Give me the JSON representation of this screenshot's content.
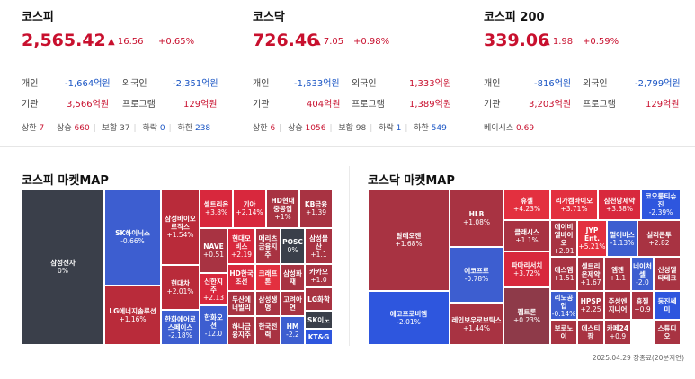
{
  "indices": [
    {
      "name": "코스피",
      "price": "2,565.42",
      "change": "▲ 16.56",
      "pct": "+0.65%",
      "rows": [
        {
          "l1": "개인",
          "v1": "-1,664억원",
          "l2": "외국인",
          "v2": "-2,351억원"
        },
        {
          "l1": "기관",
          "v1": "3,566억원",
          "l2": "프로그램",
          "v2": "129억원"
        }
      ],
      "breadth": {
        "up_limit_label": "상한",
        "up_limit": "7",
        "up_label": "상승",
        "up": "660",
        "flat_label": "보합",
        "flat": "37",
        "down_label": "하락",
        "down": "0",
        "down_limit_label": "하한",
        "down_limit": "238"
      }
    },
    {
      "name": "코스닥",
      "price": "726.46",
      "change": "▲ 7.05",
      "pct": "+0.98%",
      "rows": [
        {
          "l1": "개인",
          "v1": "-1,633억원",
          "l2": "외국인",
          "v2": "1,333억원"
        },
        {
          "l1": "기관",
          "v1": "404억원",
          "l2": "프로그램",
          "v2": "1,389억원"
        }
      ],
      "breadth": {
        "up_limit_label": "상한",
        "up_limit": "6",
        "up_label": "상승",
        "up": "1056",
        "flat_label": "보합",
        "flat": "98",
        "down_label": "하락",
        "down": "1",
        "down_limit_label": "하한",
        "down_limit": "549"
      }
    },
    {
      "name": "코스피 200",
      "price": "339.06",
      "change": "▲ 1.98",
      "pct": "+0.59%",
      "rows": [
        {
          "l1": "개인",
          "v1": "-816억원",
          "l2": "외국인",
          "v2": "-2,799억원"
        },
        {
          "l1": "기관",
          "v1": "3,203억원",
          "l2": "프로그램",
          "v2": "129억원"
        }
      ],
      "basis_label": "베이시스",
      "basis": "0.69"
    }
  ],
  "kospi_map": {
    "title": "코스피 마켓MAP",
    "tiles": [
      {
        "name": "삼성전자",
        "chg": "0%",
        "c": "g"
      },
      {
        "name": "SK하이닉스",
        "chg": "-0.66%",
        "c": "b1"
      },
      {
        "name": "LG에너지솔루션",
        "chg": "+1.16%",
        "c": "r1"
      },
      {
        "name": "삼성바이오로직스",
        "chg": "+1.54%",
        "c": "r1"
      },
      {
        "name": "현대차",
        "chg": "+2.01%",
        "c": "r1"
      },
      {
        "name": "한화에어로스페이스",
        "chg": "-2.18%",
        "c": "b1"
      },
      {
        "name": "셀트리온",
        "chg": "+3.8%",
        "c": "r2"
      },
      {
        "name": "기아",
        "chg": "+2.14%",
        "c": "r2"
      },
      {
        "name": "HD현대중공업",
        "chg": "+1%",
        "c": "r3"
      },
      {
        "name": "KB금융",
        "chg": "+1.39",
        "c": "r3"
      },
      {
        "name": "NAVE",
        "chg": "+0.51",
        "c": "r3"
      },
      {
        "name": "현대모비스",
        "chg": "+2.19",
        "c": "r2"
      },
      {
        "name": "메리츠금융지주",
        "chg": "",
        "c": "r3"
      },
      {
        "name": "POSC",
        "chg": "0%",
        "c": "g"
      },
      {
        "name": "삼성물산",
        "chg": "+1.1",
        "c": "r3"
      },
      {
        "name": "신한지주",
        "chg": "+2.13",
        "c": "r2"
      },
      {
        "name": "HD한국조선",
        "chg": "",
        "c": "r2"
      },
      {
        "name": "크래프톤",
        "chg": "",
        "c": "r4"
      },
      {
        "name": "삼성화재",
        "chg": "",
        "c": "r3"
      },
      {
        "name": "카카오",
        "chg": "+1.0",
        "c": "r3"
      },
      {
        "name": "두산에너빌리",
        "chg": "",
        "c": "r3"
      },
      {
        "name": "삼성생명",
        "chg": "",
        "c": "r3"
      },
      {
        "name": "고려아연",
        "chg": "",
        "c": "r3"
      },
      {
        "name": "LG화학",
        "chg": "",
        "c": "r3"
      },
      {
        "name": "한화오션",
        "chg": "-12.0",
        "c": "b1"
      },
      {
        "name": "하나금융지주",
        "chg": "",
        "c": "r3"
      },
      {
        "name": "한국전력",
        "chg": "",
        "c": "r3"
      },
      {
        "name": "HM",
        "chg": "-2.2",
        "c": "b1"
      },
      {
        "name": "SK이노",
        "chg": "",
        "c": "g"
      },
      {
        "name": "KT&G",
        "chg": "",
        "c": "b2"
      }
    ]
  },
  "kosdaq_map": {
    "title": "코스닥 마켓MAP",
    "tiles": [
      {
        "name": "알테오젠",
        "chg": "+1.68%",
        "c": "r3"
      },
      {
        "name": "에코프로비엠",
        "chg": "-2.01%",
        "c": "b2"
      },
      {
        "name": "HLB",
        "chg": "+1.08%",
        "c": "r3"
      },
      {
        "name": "에코프로",
        "chg": "-0.78%",
        "c": "b1"
      },
      {
        "name": "레인보우로보틱스",
        "chg": "+1.44%",
        "c": "r3"
      },
      {
        "name": "휴젤",
        "chg": "+4.23%",
        "c": "r4"
      },
      {
        "name": "클래시스",
        "chg": "+1.1%",
        "c": "r3"
      },
      {
        "name": "파마리서치",
        "chg": "+3.72%",
        "c": "r2"
      },
      {
        "name": "펩트론",
        "chg": "+0.23%",
        "c": "rd"
      },
      {
        "name": "리가켐바이오",
        "chg": "+3.71%",
        "c": "r4"
      },
      {
        "name": "삼천당제약",
        "chg": "+3.38%",
        "c": "r2"
      },
      {
        "name": "코오롱티슈진",
        "chg": "-2.39%",
        "c": "b2"
      },
      {
        "name": "에이비엘바이오",
        "chg": "+2.91",
        "c": "r3"
      },
      {
        "name": "JYP Ent.",
        "chg": "+5.21%",
        "c": "r4"
      },
      {
        "name": "펄어비스",
        "chg": "-1.13%",
        "c": "b1"
      },
      {
        "name": "실리콘투",
        "chg": "+2.82",
        "c": "r3"
      },
      {
        "name": "에스엠",
        "chg": "+1.51",
        "c": "r3"
      },
      {
        "name": "셀트리온제약",
        "chg": "+1.67",
        "c": "r3"
      },
      {
        "name": "엠젠",
        "chg": "+1.1",
        "c": "r3"
      },
      {
        "name": "네이처셀",
        "chg": "-2.0",
        "c": "b1"
      },
      {
        "name": "신성델타테크",
        "chg": "",
        "c": "r3"
      },
      {
        "name": "리노공업",
        "chg": "-0.14%",
        "c": "b1"
      },
      {
        "name": "HPSP",
        "chg": "+2.25",
        "c": "r3"
      },
      {
        "name": "주성엔지니어",
        "chg": "",
        "c": "r3"
      },
      {
        "name": "휴젤",
        "chg": "+0.9",
        "c": "r3"
      },
      {
        "name": "동진쎄미",
        "chg": "",
        "c": "b2"
      },
      {
        "name": "보로노이",
        "chg": "",
        "c": "r3"
      },
      {
        "name": "에스티팜",
        "chg": "",
        "c": "r3"
      },
      {
        "name": "카페24",
        "chg": "+0.9",
        "c": "r3"
      },
      {
        "name": "스튜디오",
        "chg": "",
        "c": "r3"
      }
    ]
  },
  "timestamp": "2025.04.29 장종료(20분지연)"
}
